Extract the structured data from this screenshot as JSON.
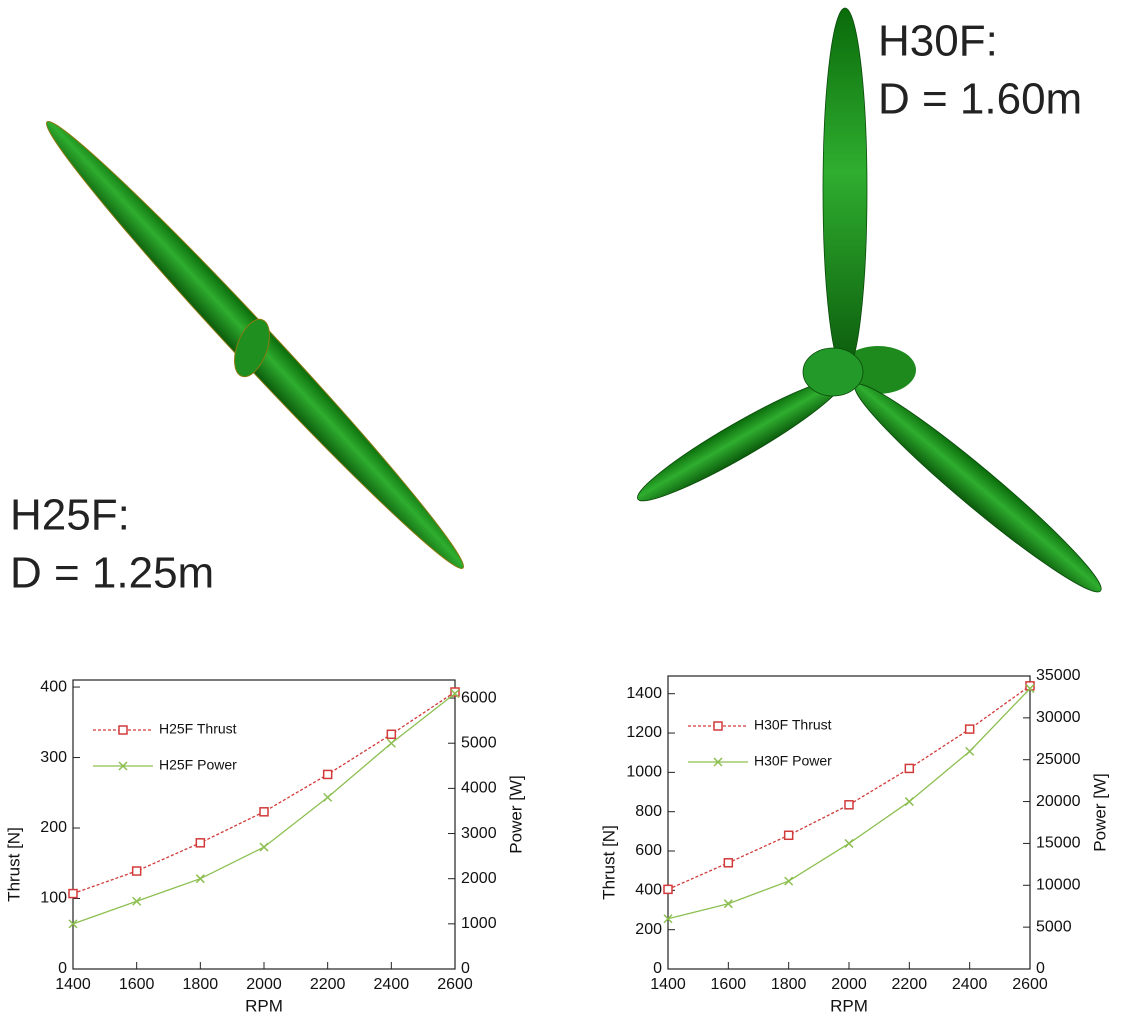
{
  "images": [
    {
      "label_lines": [
        "H25F:",
        "D = 1.25m"
      ]
    },
    {
      "label_lines": [
        "H30F:",
        "D = 1.60m"
      ]
    }
  ],
  "chart_data": [
    {
      "type": "line",
      "xlabel": "RPM",
      "ylabel": "Thrust [N]",
      "y2label": "Power [W]",
      "x": [
        1400,
        1600,
        1800,
        2000,
        2200,
        2400,
        2600
      ],
      "xlim": [
        1400,
        2600
      ],
      "xticks": [
        1400,
        1600,
        1800,
        2000,
        2200,
        2400,
        2600
      ],
      "ylim": [
        0,
        410
      ],
      "yticks": [
        0,
        100,
        200,
        300,
        400
      ],
      "y2lim": [
        0,
        6400
      ],
      "y2ticks": [
        0,
        1000,
        2000,
        3000,
        4000,
        5000,
        6000
      ],
      "legend": "upper left",
      "series": [
        {
          "name": "H25F Thrust",
          "color": "#d23a3a",
          "values": [
            107,
            139,
            179,
            223,
            276,
            333,
            393
          ]
        },
        {
          "name": "H25F Power",
          "color": "#8cbf50",
          "axis": "y2",
          "values": [
            1000,
            1500,
            2000,
            2700,
            3800,
            5000,
            6100
          ]
        }
      ]
    },
    {
      "type": "line",
      "xlabel": "RPM",
      "ylabel": "Thrust [N]",
      "y2label": "Power [W]",
      "x": [
        1400,
        1600,
        1800,
        2000,
        2200,
        2400,
        2600
      ],
      "xlim": [
        1400,
        2600
      ],
      "xticks": [
        1400,
        1600,
        1800,
        2000,
        2200,
        2400,
        2600
      ],
      "ylim": [
        0,
        1490
      ],
      "yticks": [
        0,
        200,
        400,
        600,
        800,
        1000,
        1200,
        1400
      ],
      "y2lim": [
        0,
        35000
      ],
      "y2ticks": [
        0,
        5000,
        10000,
        15000,
        20000,
        25000,
        30000,
        35000
      ],
      "legend": "upper left",
      "series": [
        {
          "name": "H30F Thrust",
          "color": "#d23a3a",
          "values": [
            405,
            540,
            680,
            835,
            1020,
            1220,
            1440
          ]
        },
        {
          "name": "H30F Power",
          "color": "#8cbf50",
          "axis": "y2",
          "values": [
            6000,
            7800,
            10500,
            15000,
            20000,
            26000,
            33500
          ]
        }
      ]
    }
  ]
}
